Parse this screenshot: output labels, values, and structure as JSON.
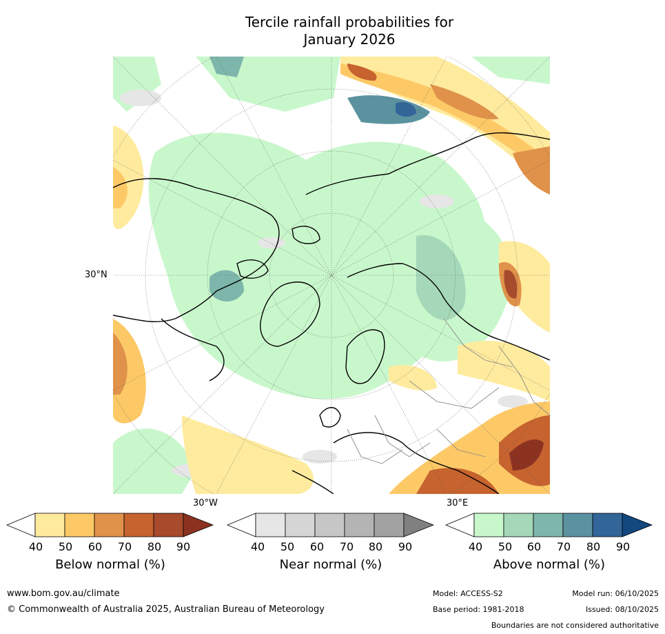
{
  "title": {
    "line1": "Tercile rainfall probabilities for",
    "line2": "January 2026"
  },
  "map_labels": {
    "lat_30n": "30°N",
    "lon_30w": "30°W",
    "lon_30e": "30°E"
  },
  "colorbars": [
    {
      "title": "Below normal (%)",
      "ticks": [
        "40",
        "50",
        "60",
        "70",
        "80",
        "90"
      ],
      "colors": [
        "#ffffff",
        "#ffeb9e",
        "#fdc967",
        "#e0924a",
        "#c6632f",
        "#a84a2c",
        "#8b3221"
      ]
    },
    {
      "title": "Near normal (%)",
      "ticks": [
        "40",
        "50",
        "60",
        "70",
        "80",
        "90"
      ],
      "colors": [
        "#ffffff",
        "#e6e6e6",
        "#d6d6d6",
        "#c6c6c6",
        "#b4b4b4",
        "#a2a2a2",
        "#808080"
      ]
    },
    {
      "title": "Above normal (%)",
      "ticks": [
        "40",
        "50",
        "60",
        "70",
        "80",
        "90"
      ],
      "colors": [
        "#ffffff",
        "#c9f7cc",
        "#a5d8b9",
        "#7eb6ab",
        "#5b92a0",
        "#326598",
        "#13487f"
      ]
    }
  ],
  "footer": {
    "website": "www.bom.gov.au/climate",
    "copyright": "© Commonwealth of Australia 2025, Australian Bureau of Meteorology",
    "model": "Model: ACCESS-S2",
    "base_period": "Base period: 1981-2018",
    "model_run": "Model run: 06/10/2025",
    "issued": "Issued: 08/10/2025",
    "disclaimer": "Boundaries are not considered authoritative"
  }
}
